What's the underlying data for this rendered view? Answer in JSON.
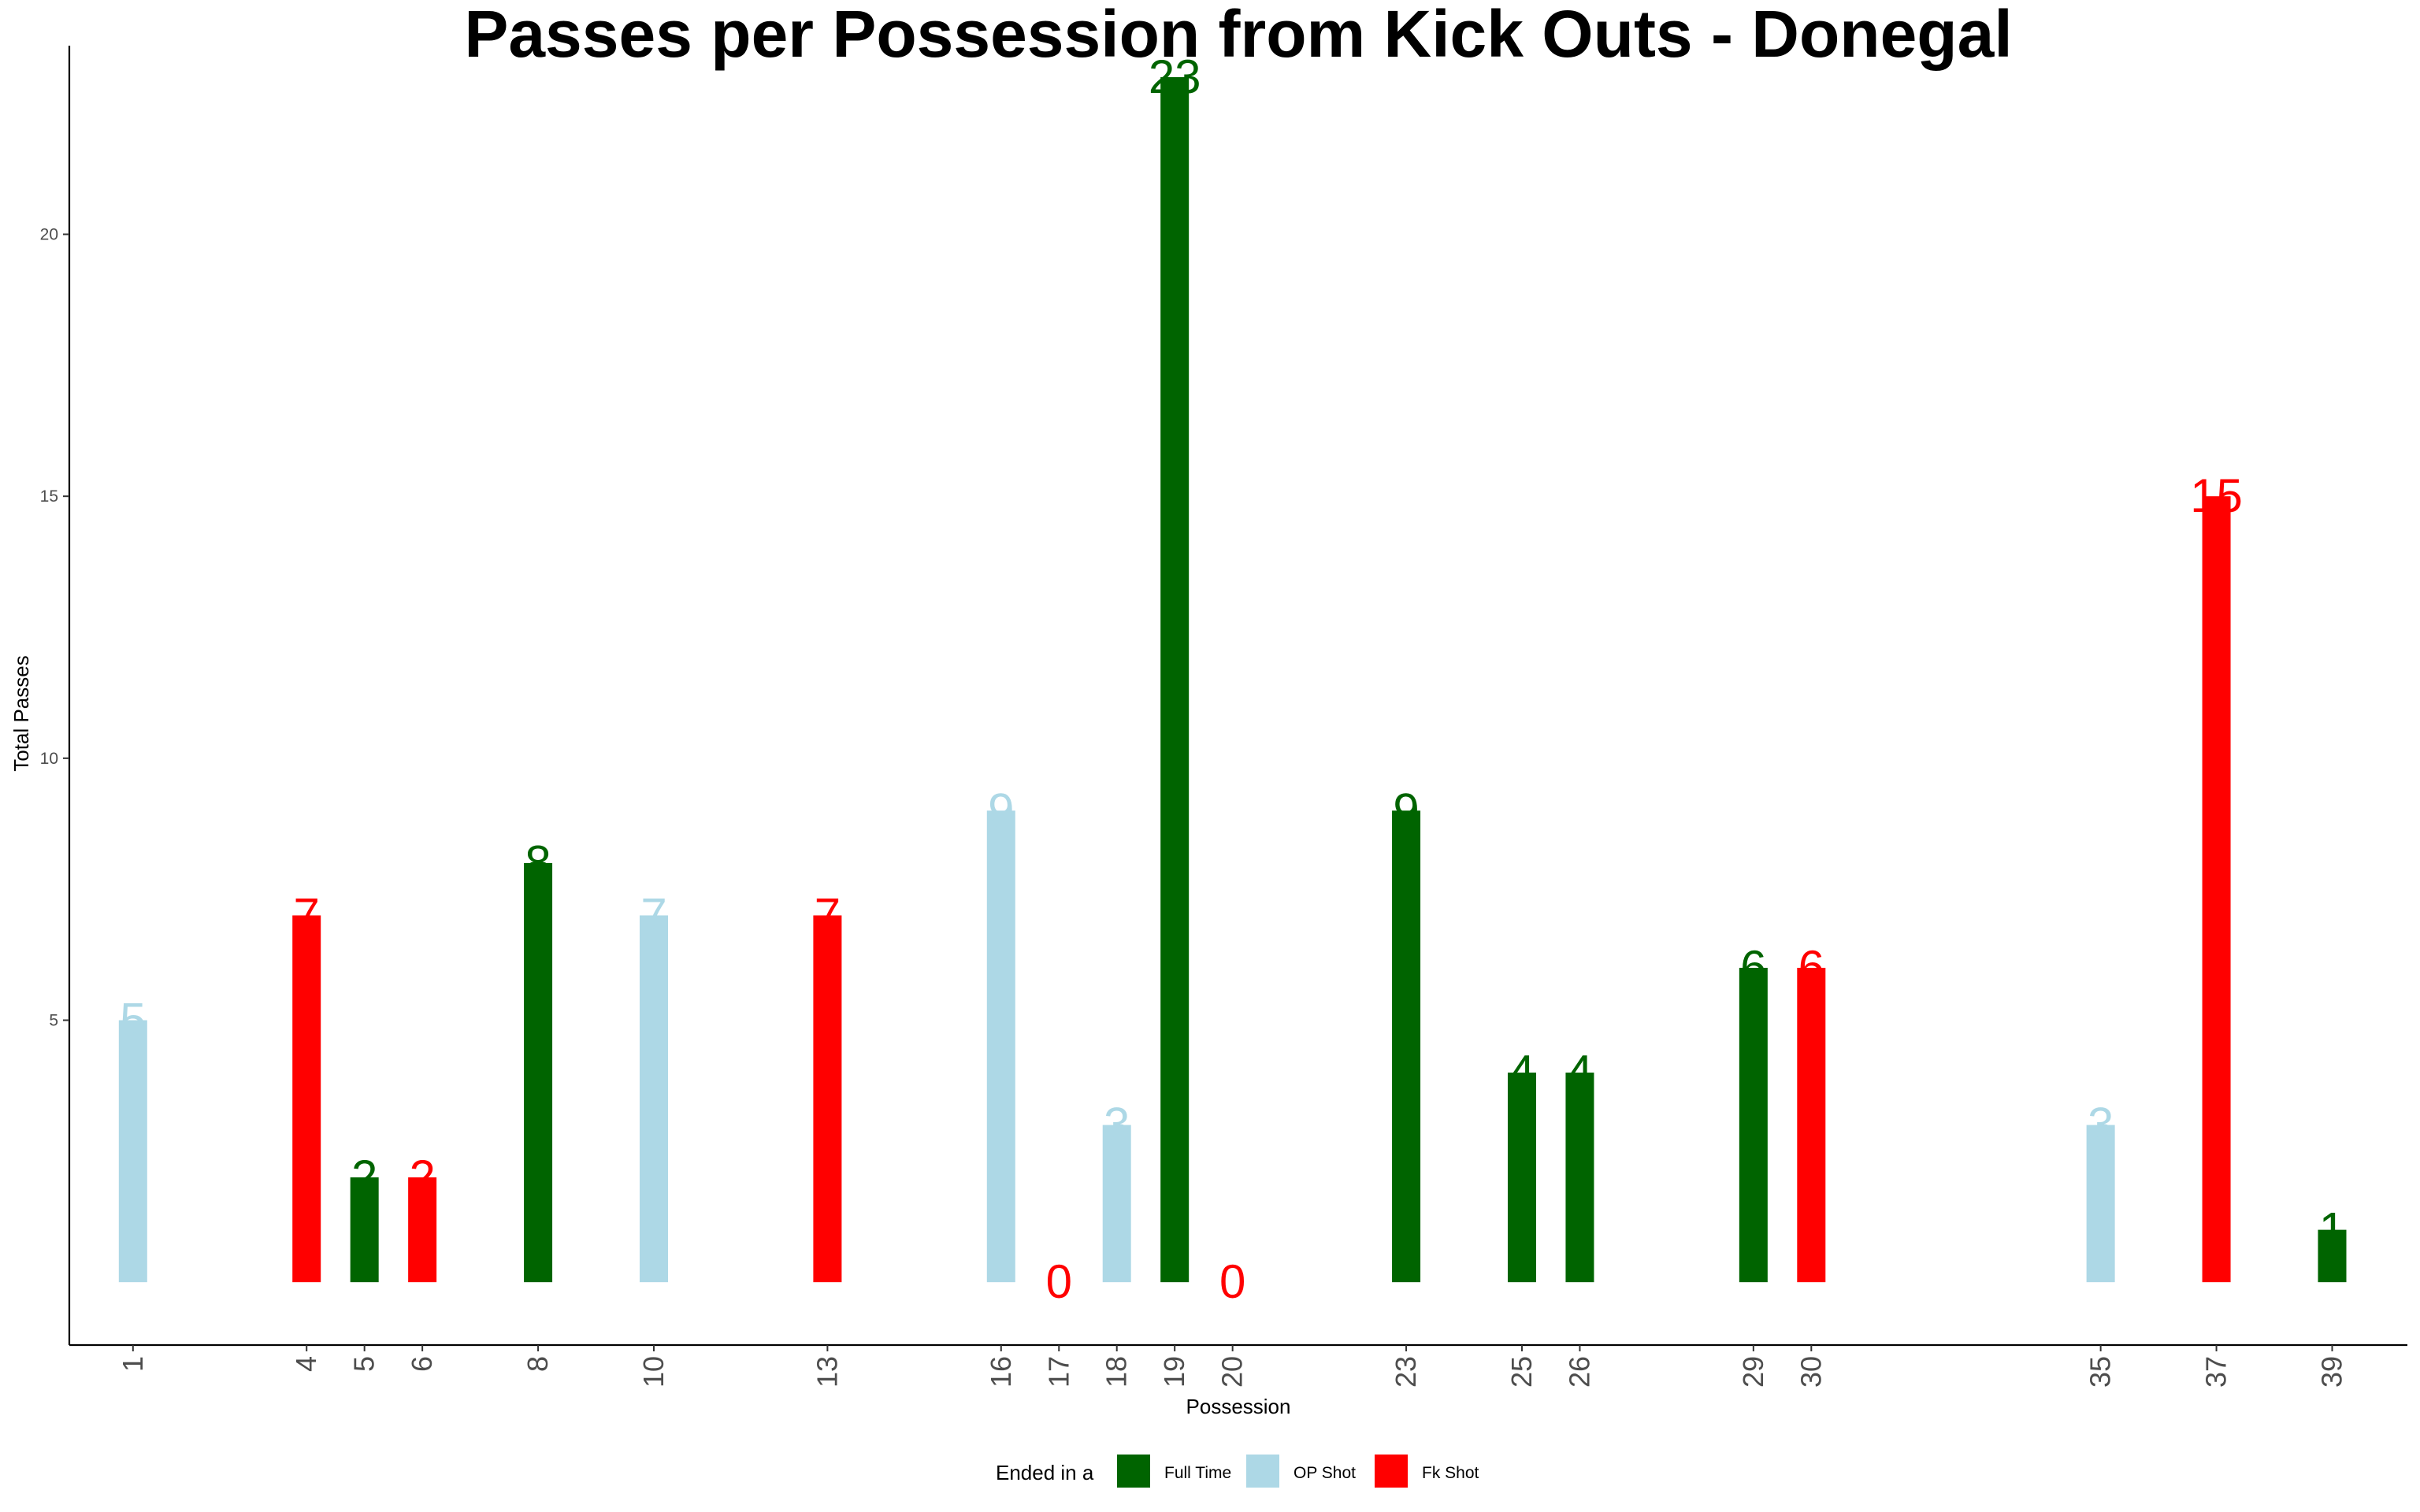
{
  "chart_data": {
    "type": "bar",
    "title": "Passes per Possession from Kick Outs - Donegal",
    "xlabel": "Possession",
    "ylabel": "Total Passes",
    "ylim": [
      -1.2,
      23.6
    ],
    "xlim": [
      -0.1,
      40.3
    ],
    "yticks": [
      5,
      10,
      15,
      20
    ],
    "grid": false,
    "legend_position": "bottom",
    "legend_title": "Ended in a",
    "legend": [
      {
        "name": "Full Time",
        "color": "#006400"
      },
      {
        "name": "OP Shot",
        "color": "#ADD8E6"
      },
      {
        "name": "Fk Shot",
        "color": "#FF0000"
      }
    ],
    "bars": [
      {
        "x": 1,
        "label": "1",
        "value": 5,
        "outcome": "OP Shot"
      },
      {
        "x": 4,
        "label": "4",
        "value": 7,
        "outcome": "Fk Shot"
      },
      {
        "x": 5,
        "label": "5",
        "value": 2,
        "outcome": "Full Time"
      },
      {
        "x": 6,
        "label": "6",
        "value": 2,
        "outcome": "Fk Shot"
      },
      {
        "x": 8,
        "label": "8",
        "value": 8,
        "outcome": "Full Time"
      },
      {
        "x": 10,
        "label": "10",
        "value": 7,
        "outcome": "OP Shot"
      },
      {
        "x": 13,
        "label": "13",
        "value": 7,
        "outcome": "Fk Shot"
      },
      {
        "x": 16,
        "label": "16",
        "value": 9,
        "outcome": "OP Shot"
      },
      {
        "x": 17,
        "label": "17",
        "value": 0,
        "outcome": "Fk Shot"
      },
      {
        "x": 18,
        "label": "18",
        "value": 3,
        "outcome": "OP Shot"
      },
      {
        "x": 19,
        "label": "19",
        "value": 23,
        "outcome": "Full Time"
      },
      {
        "x": 20,
        "label": "20",
        "value": 0,
        "outcome": "Fk Shot"
      },
      {
        "x": 23,
        "label": "23",
        "value": 9,
        "outcome": "Full Time"
      },
      {
        "x": 25,
        "label": "25",
        "value": 4,
        "outcome": "Full Time"
      },
      {
        "x": 26,
        "label": "26",
        "value": 4,
        "outcome": "Full Time"
      },
      {
        "x": 29,
        "label": "29",
        "value": 6,
        "outcome": "Full Time"
      },
      {
        "x": 30,
        "label": "30",
        "value": 6,
        "outcome": "Fk Shot"
      },
      {
        "x": 35,
        "label": "35",
        "value": 3,
        "outcome": "OP Shot"
      },
      {
        "x": 37,
        "label": "37",
        "value": 15,
        "outcome": "Fk Shot"
      },
      {
        "x": 39,
        "label": "39",
        "value": 1,
        "outcome": "Full Time"
      }
    ]
  }
}
